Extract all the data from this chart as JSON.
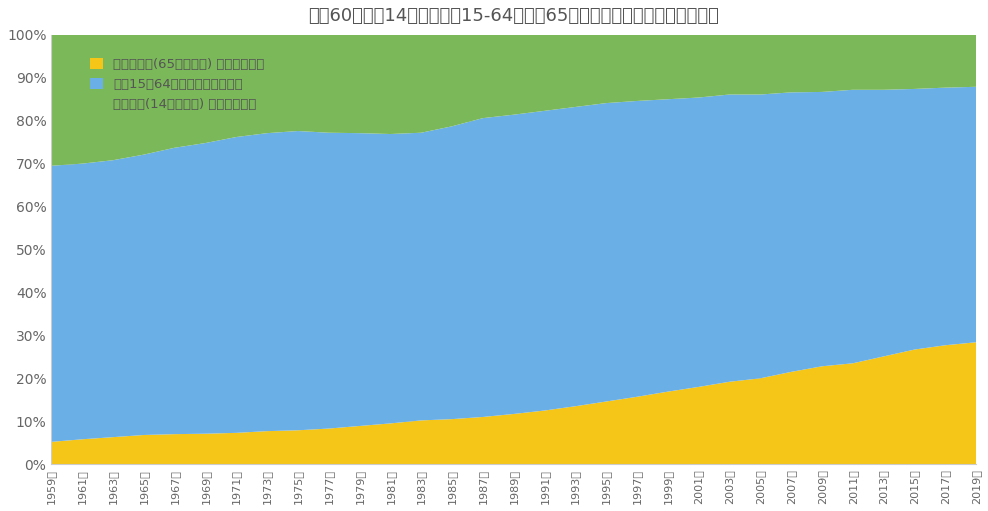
{
  "title": "过去60年日本14周岁以下、15-64周岁、65周岁以上人口在总人口中的占比",
  "years": [
    1959,
    1961,
    1963,
    1965,
    1967,
    1969,
    1971,
    1973,
    1975,
    1977,
    1979,
    1981,
    1983,
    1985,
    1987,
    1989,
    1991,
    1993,
    1995,
    1997,
    1999,
    2001,
    2003,
    2005,
    2007,
    2009,
    2011,
    2013,
    2015,
    2017,
    2019
  ],
  "elderly": [
    5.2,
    5.8,
    6.3,
    6.8,
    7.0,
    7.1,
    7.3,
    7.7,
    7.9,
    8.3,
    8.9,
    9.5,
    10.2,
    10.5,
    11.0,
    11.7,
    12.5,
    13.5,
    14.6,
    15.7,
    16.9,
    18.0,
    19.2,
    20.0,
    21.5,
    22.8,
    23.5,
    25.1,
    26.7,
    27.7,
    28.4
  ],
  "working": [
    64.3,
    64.2,
    64.5,
    65.3,
    66.7,
    67.7,
    68.9,
    69.4,
    69.7,
    68.9,
    68.2,
    67.4,
    67.0,
    68.2,
    69.6,
    69.7,
    69.8,
    69.7,
    69.5,
    68.9,
    68.1,
    67.4,
    66.9,
    66.1,
    65.1,
    63.9,
    63.7,
    62.1,
    60.7,
    60.0,
    59.5
  ],
  "children": [
    30.5,
    30.0,
    29.2,
    27.9,
    26.3,
    25.2,
    23.8,
    22.9,
    22.4,
    22.8,
    22.9,
    23.1,
    22.8,
    21.3,
    19.4,
    18.6,
    17.7,
    16.8,
    15.9,
    15.4,
    15.0,
    14.6,
    13.9,
    13.9,
    13.4,
    13.3,
    12.8,
    12.8,
    12.6,
    12.3,
    12.1
  ],
  "elderly_color": "#F5C518",
  "working_color": "#6AAFE6",
  "children_color": "#7BB85A",
  "legend_labels": [
    "日本老年人(65岁及以上) 占总人口比重",
    "日本15至64岁人口占总人口比重",
    "日本儿童(14岁及以下) 占总人口比重"
  ],
  "background_color": "#ffffff",
  "ylim": [
    0,
    100
  ],
  "yticks": [
    0,
    10,
    20,
    30,
    40,
    50,
    60,
    70,
    80,
    90,
    100
  ]
}
